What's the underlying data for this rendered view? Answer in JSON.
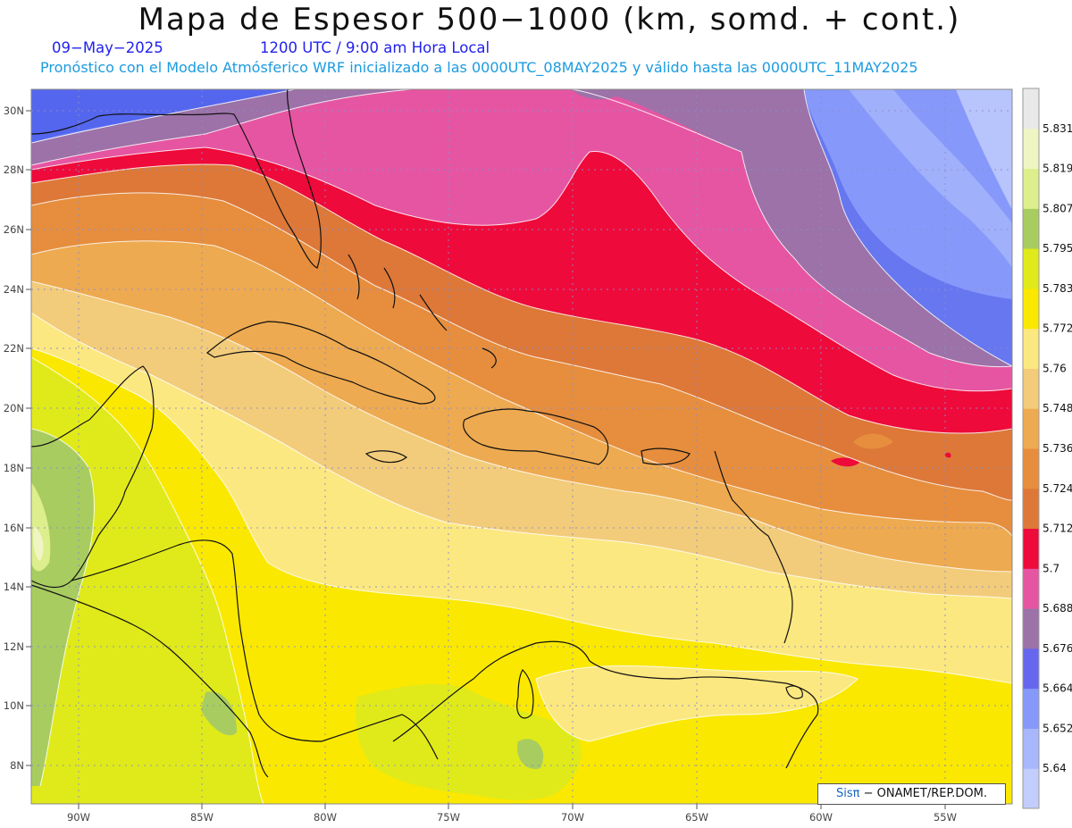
{
  "title": "Mapa de Espesor 500−1000 (km, somd. + cont.)",
  "date": "09−May−2025",
  "time": "1200 UTC / 9:00 am Hora Local",
  "description": "Pronóstico con el Modelo Atmósferico WRF inicializado a las 0000UTC_08MAY2025 y válido hasta las  0000UTC_11MAY2025",
  "latitude_labels": [
    "30N",
    "28N",
    "26N",
    "24N",
    "22N",
    "20N",
    "18N",
    "16N",
    "14N",
    "12N",
    "10N",
    "8N"
  ],
  "longitude_labels": [
    "90W",
    "85W",
    "80W",
    "75W",
    "70W",
    "65W",
    "60W",
    "55W"
  ],
  "colorbar": {
    "labels": [
      "5.831",
      "5.819",
      "5.807",
      "5.795",
      "5.783",
      "5.772",
      "5.76",
      "5.748",
      "5.736",
      "5.724",
      "5.712",
      "5.7",
      "5.688",
      "5.676",
      "5.664",
      "5.652",
      "5.64"
    ],
    "colors": [
      "#e9e9e9",
      "#f0f5c4",
      "#dcef8c",
      "#a8cc60",
      "#e0ea1a",
      "#fae800",
      "#fce880",
      "#f2cc7a",
      "#eeaa50",
      "#e68e3e",
      "#dd7838",
      "#ee0a3a",
      "#e655a2",
      "#9c72a8",
      "#6666ee",
      "#8699fa",
      "#a8b6fc",
      "#c2cdfc"
    ]
  },
  "credit": {
    "brand": "Sisπ",
    "text": " − ONAMET/REP.DOM."
  }
}
